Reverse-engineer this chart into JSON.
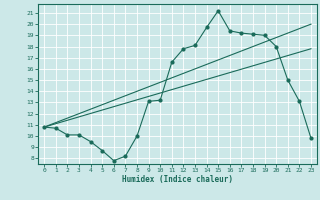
{
  "xlabel": "Humidex (Indice chaleur)",
  "background_color": "#cce8e8",
  "line_color": "#1a6b5a",
  "xlim": [
    -0.5,
    23.5
  ],
  "ylim": [
    7.5,
    21.8
  ],
  "yticks": [
    8,
    9,
    10,
    11,
    12,
    13,
    14,
    15,
    16,
    17,
    18,
    19,
    20,
    21
  ],
  "xticks": [
    0,
    1,
    2,
    3,
    4,
    5,
    6,
    7,
    8,
    9,
    10,
    11,
    12,
    13,
    14,
    15,
    16,
    17,
    18,
    19,
    20,
    21,
    22,
    23
  ],
  "line1_x": [
    0,
    1,
    2,
    3,
    4,
    5,
    6,
    7,
    8,
    9,
    10,
    11,
    12,
    13,
    14,
    15,
    16,
    17,
    18,
    19,
    20,
    21,
    22,
    23
  ],
  "line1_y": [
    10.8,
    10.7,
    10.1,
    10.1,
    9.5,
    8.7,
    7.8,
    8.2,
    10.0,
    13.1,
    13.2,
    16.6,
    17.8,
    18.1,
    19.7,
    21.2,
    19.4,
    19.2,
    19.1,
    19.0,
    18.0,
    15.0,
    13.1,
    9.8
  ],
  "line2_x": [
    0,
    23
  ],
  "line2_y": [
    10.8,
    20.0
  ],
  "line3_x": [
    0,
    23
  ],
  "line3_y": [
    10.8,
    17.8
  ]
}
